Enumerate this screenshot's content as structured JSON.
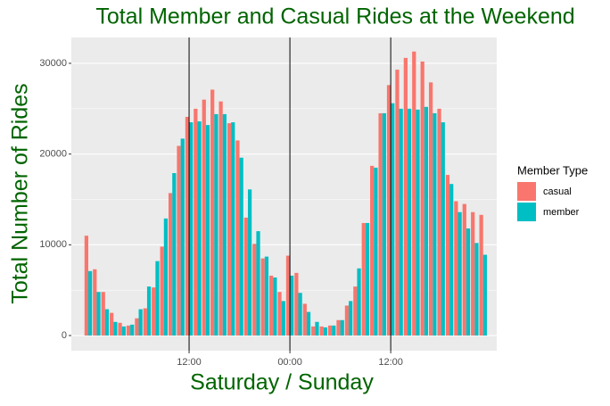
{
  "chart_data": {
    "type": "bar",
    "title": "Total Member and Casual Rides at the Weekend",
    "x_label": "Saturday / Sunday",
    "y_label": "Total Number of Rides",
    "legend_title": "Member Type",
    "legend_position": "right",
    "categories": [
      null,
      null,
      null,
      null,
      null,
      null,
      null,
      null,
      null,
      null,
      null,
      null,
      "12:00",
      null,
      null,
      null,
      null,
      null,
      null,
      null,
      null,
      null,
      null,
      null,
      "00:00",
      null,
      null,
      null,
      null,
      null,
      null,
      null,
      null,
      null,
      null,
      null,
      "12:00",
      null,
      null,
      null,
      null,
      null,
      null,
      null,
      null,
      null,
      null,
      null
    ],
    "series": [
      {
        "name": "casual",
        "color": "#F8766D",
        "values": [
          11000,
          7300,
          4800,
          2500,
          1400,
          1100,
          1900,
          3000,
          5300,
          9800,
          15700,
          20900,
          24100,
          25000,
          26000,
          27100,
          25800,
          23400,
          21500,
          13000,
          10100,
          8500,
          6600,
          4800,
          8800,
          6900,
          3500,
          1000,
          1000,
          1100,
          1700,
          3300,
          5400,
          12400,
          18700,
          24500,
          27600,
          29300,
          30600,
          31300,
          30200,
          27900,
          25000,
          17700,
          14800,
          14500,
          13600,
          13300
        ]
      },
      {
        "name": "member",
        "color": "#00BFC4",
        "values": [
          7100,
          4800,
          2900,
          1500,
          1000,
          1200,
          2900,
          5400,
          8200,
          12900,
          17900,
          21700,
          23500,
          23600,
          23200,
          24400,
          24400,
          23500,
          19600,
          16100,
          11500,
          8700,
          6400,
          3800,
          6600,
          4700,
          2600,
          1500,
          900,
          1100,
          1700,
          3800,
          7400,
          12400,
          18500,
          24500,
          25600,
          25000,
          25000,
          24900,
          25200,
          24500,
          23500,
          16700,
          13600,
          11800,
          10200,
          8900
        ]
      }
    ],
    "ylim": [
      -1670,
      32850
    ],
    "yticks": [
      0,
      10000,
      20000,
      30000
    ],
    "grid": true
  }
}
